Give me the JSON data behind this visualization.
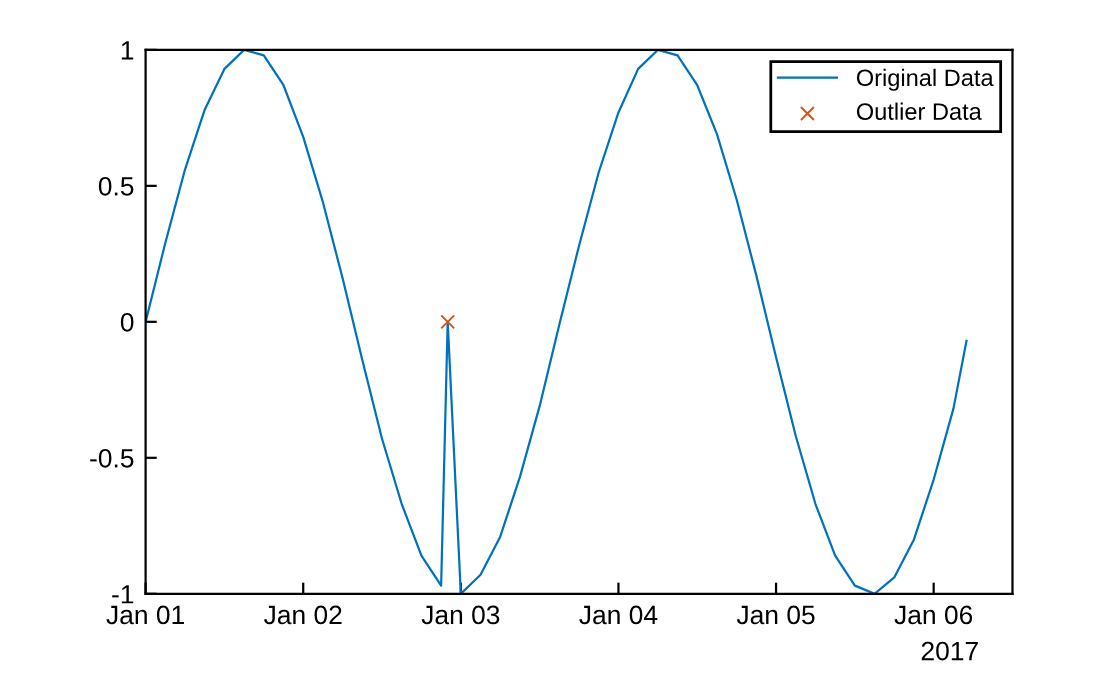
{
  "chart_data": {
    "type": "line",
    "xlim": [
      "2017-01-01",
      "2017-01-06T12:00"
    ],
    "xticks": [
      {
        "value": "2017-01-01",
        "label": "Jan 01"
      },
      {
        "value": "2017-01-02",
        "label": "Jan 02"
      },
      {
        "value": "2017-01-03",
        "label": "Jan 03"
      },
      {
        "value": "2017-01-04",
        "label": "Jan 04"
      },
      {
        "value": "2017-01-05",
        "label": "Jan 05"
      },
      {
        "value": "2017-01-06",
        "label": "Jan 06"
      }
    ],
    "ylim": [
      -1,
      1
    ],
    "yticks": [
      -1,
      -0.5,
      0,
      0.5,
      1
    ],
    "grid": false,
    "legend": "top right",
    "annotations": [
      "2017"
    ],
    "series": [
      {
        "name": "Original Data",
        "color": "#0072bd",
        "marker": "none",
        "line_style": "solid",
        "x": [
          "2017-01-01T00:00",
          "2017-01-01T03:00",
          "2017-01-01T06:00",
          "2017-01-01T09:00",
          "2017-01-01T12:00",
          "2017-01-01T15:00",
          "2017-01-01T18:00",
          "2017-01-01T21:00",
          "2017-01-02T00:00",
          "2017-01-02T03:00",
          "2017-01-02T06:00",
          "2017-01-02T09:00",
          "2017-01-02T12:00",
          "2017-01-02T15:00",
          "2017-01-02T18:00",
          "2017-01-02T21:00",
          "2017-01-02T22:00",
          "2017-01-03T00:00",
          "2017-01-03T03:00",
          "2017-01-03T06:00",
          "2017-01-03T09:00",
          "2017-01-03T12:00",
          "2017-01-03T15:00",
          "2017-01-03T18:00",
          "2017-01-03T21:00",
          "2017-01-04T00:00",
          "2017-01-04T03:00",
          "2017-01-04T06:00",
          "2017-01-04T09:00",
          "2017-01-04T12:00",
          "2017-01-04T15:00",
          "2017-01-04T18:00",
          "2017-01-04T21:00",
          "2017-01-05T00:00",
          "2017-01-05T03:00",
          "2017-01-05T06:00",
          "2017-01-05T09:00",
          "2017-01-05T12:00",
          "2017-01-05T15:00",
          "2017-01-05T18:00",
          "2017-01-05T21:00",
          "2017-01-06T00:00",
          "2017-01-06T03:00",
          "2017-01-06T05:00"
        ],
        "values": [
          0,
          0.29,
          0.56,
          0.78,
          0.93,
          1.0,
          0.98,
          0.87,
          0.68,
          0.44,
          0.16,
          -0.14,
          -0.43,
          -0.67,
          -0.86,
          -0.97,
          0,
          -1.0,
          -0.93,
          -0.79,
          -0.57,
          -0.31,
          -0.01,
          0.28,
          0.55,
          0.77,
          0.93,
          1.0,
          0.98,
          0.87,
          0.69,
          0.45,
          0.17,
          -0.13,
          -0.42,
          -0.67,
          -0.86,
          -0.97,
          -1.0,
          -0.94,
          -0.8,
          -0.58,
          -0.32,
          -0.07
        ]
      },
      {
        "name": "Outlier Data",
        "type": "scatter",
        "color": "#d95319",
        "marker": "cross",
        "x": [
          "2017-01-02T22:00"
        ],
        "values": [
          0
        ]
      }
    ]
  }
}
